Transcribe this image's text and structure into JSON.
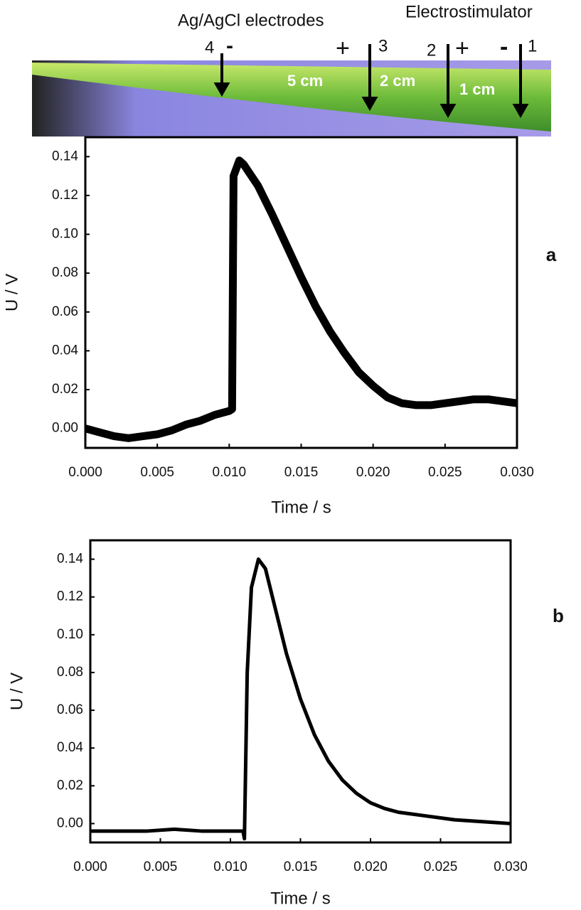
{
  "photo": {
    "labels": [
      "Ag/AgCl electrodes",
      "Electrostimulator",
      "4",
      "-",
      "+",
      "3",
      "2",
      "+",
      "-",
      "1",
      "5 cm",
      "2 cm",
      "1 cm"
    ]
  },
  "chart_data": [
    {
      "type": "line",
      "panel_label": "a",
      "x_label": "Time / s",
      "y_label": "U / V",
      "color": "#000000",
      "x": [
        0,
        0.001,
        0.002,
        0.003,
        0.004,
        0.005,
        0.006,
        0.007,
        0.008,
        0.009,
        0.01,
        0.0102,
        0.0103,
        0.0107,
        0.011,
        0.012,
        0.013,
        0.014,
        0.015,
        0.016,
        0.017,
        0.018,
        0.019,
        0.02,
        0.021,
        0.022,
        0.023,
        0.024,
        0.025,
        0.026,
        0.027,
        0.028,
        0.029,
        0.03
      ],
      "values": [
        0,
        -0.002,
        -0.004,
        -0.005,
        -0.004,
        -0.003,
        -0.001,
        0.002,
        0.004,
        0.007,
        0.009,
        0.01,
        0.13,
        0.138,
        0.136,
        0.125,
        0.11,
        0.094,
        0.078,
        0.063,
        0.05,
        0.039,
        0.029,
        0.022,
        0.016,
        0.013,
        0.012,
        0.012,
        0.013,
        0.014,
        0.015,
        0.015,
        0.014,
        0.013
      ],
      "xlim": [
        0,
        0.03
      ],
      "ylim": [
        -0.01,
        0.15
      ],
      "xticks": [
        {
          "value": 0,
          "label": "0.000"
        },
        {
          "value": 0.005,
          "label": "0.005"
        },
        {
          "value": 0.01,
          "label": "0.010"
        },
        {
          "value": 0.015,
          "label": "0.015"
        },
        {
          "value": 0.02,
          "label": "0.020"
        },
        {
          "value": 0.025,
          "label": "0.025"
        },
        {
          "value": 0.03,
          "label": "0.030"
        }
      ],
      "yticks": [
        {
          "value": 0,
          "label": "0.00"
        },
        {
          "value": 0.02,
          "label": "0.02"
        },
        {
          "value": 0.04,
          "label": "0.04"
        },
        {
          "value": 0.06,
          "label": "0.06"
        },
        {
          "value": 0.08,
          "label": "0.08"
        },
        {
          "value": 0.1,
          "label": "0.10"
        },
        {
          "value": 0.12,
          "label": "0.12"
        },
        {
          "value": 0.14,
          "label": "0.14"
        }
      ]
    },
    {
      "type": "line",
      "panel_label": "b",
      "x_label": "Time / s",
      "y_label": "U / V",
      "color": "#000000",
      "x": [
        0,
        0.002,
        0.004,
        0.006,
        0.008,
        0.01,
        0.0109,
        0.011,
        0.0112,
        0.0115,
        0.012,
        0.0125,
        0.013,
        0.014,
        0.015,
        0.016,
        0.017,
        0.018,
        0.019,
        0.02,
        0.021,
        0.022,
        0.024,
        0.026,
        0.028,
        0.03
      ],
      "values": [
        -0.004,
        -0.004,
        -0.004,
        -0.003,
        -0.004,
        -0.004,
        -0.004,
        -0.008,
        0.08,
        0.125,
        0.14,
        0.135,
        0.12,
        0.09,
        0.066,
        0.047,
        0.033,
        0.023,
        0.016,
        0.011,
        0.008,
        0.006,
        0.004,
        0.002,
        0.001,
        0
      ],
      "xlim": [
        0,
        0.03
      ],
      "ylim": [
        -0.01,
        0.15
      ],
      "xticks": [
        {
          "value": 0,
          "label": "0.000"
        },
        {
          "value": 0.005,
          "label": "0.005"
        },
        {
          "value": 0.01,
          "label": "0.010"
        },
        {
          "value": 0.015,
          "label": "0.015"
        },
        {
          "value": 0.02,
          "label": "0.020"
        },
        {
          "value": 0.025,
          "label": "0.025"
        },
        {
          "value": 0.03,
          "label": "0.030"
        }
      ],
      "yticks": [
        {
          "value": 0,
          "label": "0.00"
        },
        {
          "value": 0.02,
          "label": "0.02"
        },
        {
          "value": 0.04,
          "label": "0.04"
        },
        {
          "value": 0.06,
          "label": "0.06"
        },
        {
          "value": 0.08,
          "label": "0.08"
        },
        {
          "value": 0.1,
          "label": "0.10"
        },
        {
          "value": 0.12,
          "label": "0.12"
        },
        {
          "value": 0.14,
          "label": "0.14"
        }
      ]
    }
  ]
}
